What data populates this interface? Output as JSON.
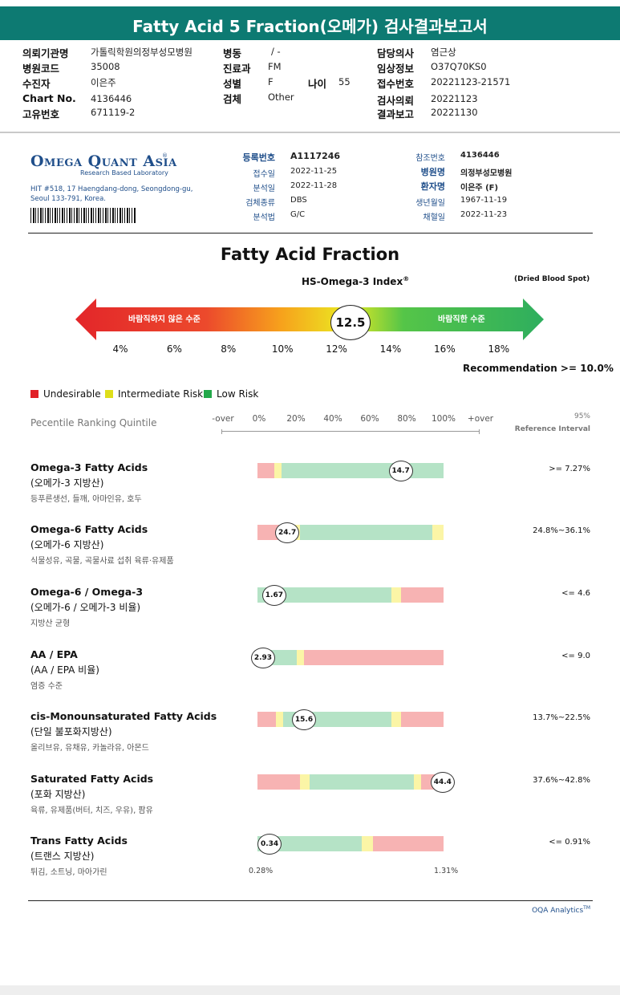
{
  "report_title": "Fatty Acid 5 Fraction(오메가) 검사결과보고서",
  "header": {
    "institution_label": "의뢰기관명",
    "institution": "가톨릭학원의정부성모병원",
    "hospital_code_label": "병원코드",
    "hospital_code": "35008",
    "patient_label": "수진자",
    "patient": "이은주",
    "chart_label": "Chart No.",
    "chart": "4136446",
    "unique_label": "고유번호",
    "unique": "671119-2",
    "ward_label": "병동",
    "ward": "/ -",
    "dept_label": "진료과",
    "dept": "FM",
    "sex_label": "성별",
    "sex": "F",
    "age_label": "나이",
    "age": "55",
    "specimen_label": "검체",
    "specimen": "Other",
    "doctor_label": "담당의사",
    "doctor": "염근상",
    "clinical_label": "임상정보",
    "clinical": "O37Q70KS0",
    "reception_label": "접수번호",
    "reception": "20221123-21571",
    "request_label": "검사의뢰",
    "request": "20221123",
    "result_label": "결과보고",
    "result": "20221130"
  },
  "lab": {
    "name": "Omega Quant Asia",
    "tagline": "Research Based Laboratory",
    "address_line1": "HIT #518, 17 Haengdang-dong, Seongdong-gu,",
    "address_line2": "Seoul 133-791, Korea."
  },
  "info": {
    "reg_no_label": "등록번호",
    "reg_no": "A1117246",
    "received_label": "접수일",
    "received": "2022-11-25",
    "analyzed_label": "분석일",
    "analyzed": "2022-11-28",
    "sample_type_label": "검체종류",
    "sample_type": "DBS",
    "method_label": "분석법",
    "method": "G/C",
    "ref_no_label": "참조번호",
    "ref_no": "4136446",
    "hospital_label": "병원명",
    "hospital": "의정부성모병원",
    "patient_label": "환자명",
    "patient": "이은주 (F)",
    "dob_label": "생년월일",
    "dob": "1967-11-19",
    "collected_label": "채혈일",
    "collected": "2022-11-23"
  },
  "index_section": {
    "title": "Fatty Acid Fraction",
    "index_name": "HS-Omega-3 Index",
    "index_sup": "®",
    "sample_note": "(Dried Blood Spot)",
    "left_label": "바람직하지 않은 수준",
    "right_label": "바람직한 수준",
    "value": 12.5,
    "value_text": "12.5",
    "scale": [
      "4%",
      "6%",
      "8%",
      "10%",
      "12%",
      "14%",
      "16%",
      "18%"
    ],
    "recommendation": "Recommendation  >= 10.0%"
  },
  "legend": [
    {
      "label": "Undesirable",
      "color": "#e11f26"
    },
    {
      "label": "Intermediate Risk",
      "color": "#dede1a"
    },
    {
      "label": "Low Risk",
      "color": "#22a84a"
    }
  ],
  "percentile": {
    "title": "Pecentile Ranking Quintile",
    "ticks": [
      "-over",
      "0%",
      "20%",
      "40%",
      "60%",
      "80%",
      "100%",
      "+over"
    ],
    "ref_pct": "95%",
    "ref_label": "Reference Interval"
  },
  "colors": {
    "red_zone": "#f7b3b3",
    "yellow_zone": "#fbf5a6",
    "green_zone": "#b5e3c6",
    "banner": "#0d7a72",
    "brand": "#1f4e8a"
  },
  "rows": [
    {
      "title": "Omega-3 Fatty Acids",
      "sub": "(오메가-3 지방산)",
      "foods": "등푸른생선, 들깨, 아마인유, 호두",
      "ref": ">= 7.27%",
      "value": "14.7",
      "marker_pct": 0.77,
      "zones": [
        {
          "z": "red",
          "from": 0,
          "to": 0.09
        },
        {
          "z": "yellow",
          "from": 0.09,
          "to": 0.13
        },
        {
          "z": "green",
          "from": 0.13,
          "to": 1
        }
      ]
    },
    {
      "title": "Omega-6 Fatty Acids",
      "sub": "(오메가-6 지방산)",
      "foods": "식물성유, 곡물, 곡물사료 섭취 육류·유제품",
      "ref": "24.8%~36.1%",
      "value": "24.7",
      "marker_pct": 0.16,
      "zones": [
        {
          "z": "red",
          "from": 0,
          "to": 0.17
        },
        {
          "z": "yellow",
          "from": 0.17,
          "to": 0.23
        },
        {
          "z": "green",
          "from": 0.23,
          "to": 0.94
        },
        {
          "z": "yellow",
          "from": 0.94,
          "to": 1
        }
      ]
    },
    {
      "title": "Omega-6 / Omega-3",
      "sub": "(오메가-6 / 오메가-3 비율)",
      "foods": "지방산 균형",
      "ref": "<= 4.6",
      "value": "1.67",
      "marker_pct": 0.09,
      "zones": [
        {
          "z": "green",
          "from": 0,
          "to": 0.72
        },
        {
          "z": "yellow",
          "from": 0.72,
          "to": 0.77
        },
        {
          "z": "red",
          "from": 0.77,
          "to": 1
        }
      ]
    },
    {
      "title": "AA / EPA",
      "sub": "(AA / EPA 비율)",
      "foods": "염증 수준",
      "ref": "<= 9.0",
      "value": "2.93",
      "marker_pct": 0.03,
      "zones": [
        {
          "z": "green",
          "from": 0,
          "to": 0.21
        },
        {
          "z": "yellow",
          "from": 0.21,
          "to": 0.25
        },
        {
          "z": "red",
          "from": 0.25,
          "to": 1
        }
      ]
    },
    {
      "title": "cis-Monounsaturated Fatty Acids",
      "sub": "(단일 불포화지방산)",
      "foods": "올리브유, 유채유, 카놀라유, 아몬드",
      "ref": "13.7%~22.5%",
      "value": "15.6",
      "marker_pct": 0.25,
      "zones": [
        {
          "z": "red",
          "from": 0,
          "to": 0.1
        },
        {
          "z": "yellow",
          "from": 0.1,
          "to": 0.14
        },
        {
          "z": "green",
          "from": 0.14,
          "to": 0.72
        },
        {
          "z": "yellow",
          "from": 0.72,
          "to": 0.77
        },
        {
          "z": "red",
          "from": 0.77,
          "to": 1
        }
      ]
    },
    {
      "title": "Saturated Fatty Acids",
      "sub": "(포화 지방산)",
      "foods": "육류, 유제품(버터, 치즈, 우유), 팜유",
      "ref": "37.6%~42.8%",
      "value": "44.4",
      "marker_pct": 0.995,
      "zones": [
        {
          "z": "red",
          "from": 0,
          "to": 0.23
        },
        {
          "z": "yellow",
          "from": 0.23,
          "to": 0.28
        },
        {
          "z": "green",
          "from": 0.28,
          "to": 0.84
        },
        {
          "z": "yellow",
          "from": 0.84,
          "to": 0.88
        },
        {
          "z": "red",
          "from": 0.88,
          "to": 1
        }
      ]
    },
    {
      "title": "Trans Fatty Acids",
      "sub": "(트랜스 지방산)",
      "foods": "튀김, 소트닝, 마아가린",
      "ref": "<= 0.91%",
      "value": "0.34",
      "marker_pct": 0.065,
      "zones": [
        {
          "z": "green",
          "from": 0,
          "to": 0.56
        },
        {
          "z": "yellow",
          "from": 0.56,
          "to": 0.62
        },
        {
          "z": "red",
          "from": 0.62,
          "to": 1
        }
      ]
    }
  ],
  "trans_axis": {
    "min": "0.28%",
    "max": "1.31%"
  },
  "footer": {
    "brand": "OQA Analytics",
    "brand_sup": "TM"
  }
}
